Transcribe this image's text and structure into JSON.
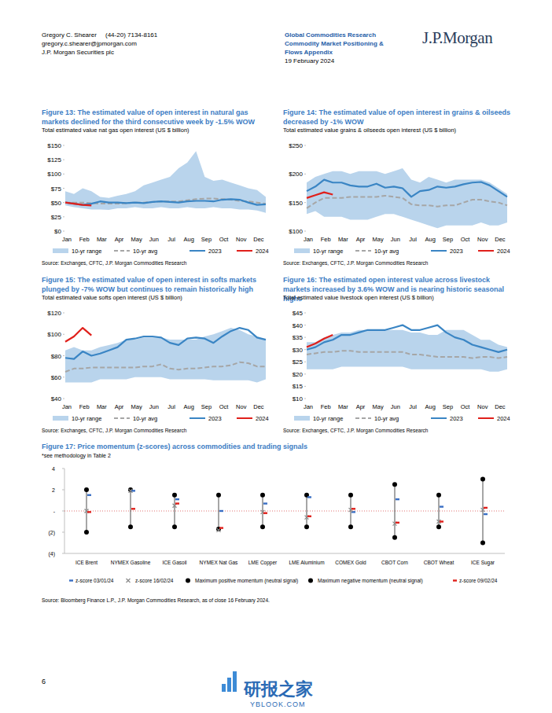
{
  "header": {
    "author": "Gregory C. Shearer",
    "phone": "(44-20) 7134-8161",
    "email": "gregory.c.shearer@jpmorgan.com",
    "entity": "J.P. Morgan Securities plc",
    "department": "Global Commodities Research",
    "publication_lines": [
      "Commodity Market Positioning &",
      "Flows Appendix"
    ],
    "date": "19 February 2024",
    "logo": "J.P.Morgan"
  },
  "chart_data": [
    {
      "type": "line",
      "title": "Figure 13: The estimated value of open interest in natural gas markets declined for the third consecutive week by -1.5% WOW",
      "subtitle": "Total estimated value nat gas open interest (US $ billion)",
      "source": "Source: Exchanges, CFTC, J.P. Morgan Commodities Research",
      "categories": [
        "Jan",
        null,
        "Feb",
        null,
        "Mar",
        null,
        "Apr",
        null,
        "May",
        null,
        "Jun",
        null,
        "Jul",
        null,
        "Aug",
        null,
        "Sep",
        null,
        "Oct",
        null,
        "Nov",
        null,
        "Dec",
        null
      ],
      "series": [
        {
          "name": "10-yr range",
          "type": "range",
          "color": "#b9d4ec",
          "low": [
            45,
            42,
            40,
            38,
            38,
            37,
            40,
            40,
            42,
            40,
            40,
            42,
            40,
            40,
            42,
            40,
            40,
            42,
            40,
            40,
            38,
            38,
            36,
            32
          ],
          "high": [
            70,
            65,
            75,
            70,
            60,
            58,
            62,
            65,
            70,
            80,
            85,
            90,
            95,
            110,
            120,
            140,
            95,
            88,
            90,
            85,
            80,
            75,
            72,
            60
          ]
        },
        {
          "name": "10-yr avg",
          "color": "#a6a6a6",
          "line_style": "dashed",
          "values": [
            50,
            50,
            50,
            49,
            48,
            48,
            48,
            49,
            50,
            50,
            51,
            52,
            52,
            52,
            54,
            56,
            57,
            57,
            56,
            55,
            53,
            52,
            50,
            48
          ]
        },
        {
          "name": "2023",
          "color": "#3a85c4",
          "values": [
            50,
            48,
            46,
            48,
            52,
            50,
            50,
            49,
            50,
            49,
            51,
            52,
            51,
            50,
            52,
            53,
            53,
            52,
            55,
            56,
            55,
            50,
            46,
            47
          ]
        },
        {
          "name": "2024",
          "color": "#e0201b",
          "values": [
            50,
            48,
            46,
            45,
            null,
            null,
            null,
            null,
            null,
            null,
            null,
            null,
            null,
            null,
            null,
            null,
            null,
            null,
            null,
            null,
            null,
            null,
            null,
            null
          ]
        }
      ],
      "ylim": [
        0,
        150
      ],
      "yticks": [
        {
          "value": 0,
          "label": "$0"
        },
        {
          "value": 25,
          "label": "$25"
        },
        {
          "value": 50,
          "label": "$50"
        },
        {
          "value": 75,
          "label": "$75"
        },
        {
          "value": 100,
          "label": "$100"
        },
        {
          "value": 125,
          "label": "$125"
        },
        {
          "value": 150,
          "label": "$150"
        }
      ],
      "grid": false,
      "legend": "bottom"
    },
    {
      "type": "line",
      "title": "Figure 14: The estimated value of open interest in grains & oilseeds decreased by -1% WOW",
      "subtitle": "Total estimated value grains & oilseeds open interest (US $ billion)",
      "source": "Source: Exchanges, CFTC, J.P. Morgan Commodities Research",
      "categories": [
        "Jan",
        null,
        "Feb",
        null,
        "Mar",
        null,
        "Apr",
        null,
        "May",
        null,
        "Jun",
        null,
        "Jul",
        null,
        "Aug",
        null,
        "Sep",
        null,
        "Oct",
        null,
        "Nov",
        null,
        "Dec",
        null
      ],
      "series": [
        {
          "name": "10-yr range",
          "type": "range",
          "color": "#b9d4ec",
          "low": [
            130,
            135,
            125,
            125,
            125,
            120,
            120,
            120,
            125,
            130,
            130,
            125,
            120,
            115,
            110,
            105,
            110,
            110,
            110,
            110,
            115,
            110,
            110,
            115
          ],
          "high": [
            185,
            195,
            200,
            205,
            205,
            200,
            205,
            205,
            205,
            200,
            205,
            210,
            190,
            185,
            195,
            190,
            185,
            190,
            190,
            190,
            190,
            185,
            175,
            165
          ]
        },
        {
          "name": "10-yr avg",
          "color": "#a6a6a6",
          "line_style": "dashed",
          "values": [
            140,
            150,
            158,
            158,
            158,
            160,
            160,
            160,
            160,
            162,
            160,
            158,
            147,
            145,
            145,
            143,
            145,
            145,
            150,
            155,
            155,
            152,
            150,
            145
          ]
        },
        {
          "name": "2023",
          "color": "#3a85c4",
          "values": [
            170,
            178,
            190,
            185,
            185,
            180,
            178,
            178,
            183,
            176,
            178,
            175,
            160,
            170,
            172,
            178,
            176,
            178,
            182,
            185,
            186,
            180,
            170,
            160
          ]
        },
        {
          "name": "2024",
          "color": "#e0201b",
          "values": [
            158,
            163,
            168,
            164,
            null,
            null,
            null,
            null,
            null,
            null,
            null,
            null,
            null,
            null,
            null,
            null,
            null,
            null,
            null,
            null,
            null,
            null,
            null,
            null
          ]
        }
      ],
      "ylim": [
        100,
        250
      ],
      "yticks": [
        {
          "value": 100,
          "label": "$100"
        },
        {
          "value": 150,
          "label": "$150"
        },
        {
          "value": 200,
          "label": "$200"
        },
        {
          "value": 250,
          "label": "$250"
        }
      ],
      "grid": false,
      "legend": "bottom"
    },
    {
      "type": "line",
      "title": "Figure 15: The estimated value of open interest in softs markets plunged by -7% WOW but continues to remain historically high",
      "subtitle": "Total estimated value softs open interest (US $ billion)",
      "source": "Source: Exchanges, CFTC, J.P. Morgan Commodities Research",
      "categories": [
        "Jan",
        null,
        "Feb",
        null,
        "Mar",
        null,
        "Apr",
        null,
        "May",
        null,
        "Jun",
        null,
        "Jul",
        null,
        "Aug",
        null,
        "Sep",
        null,
        "Oct",
        null,
        "Nov",
        null,
        "Dec",
        null
      ],
      "series": [
        {
          "name": "10-yr range",
          "type": "range",
          "color": "#b9d4ec",
          "low": [
            55,
            55,
            55,
            55,
            58,
            58,
            58,
            58,
            60,
            60,
            60,
            60,
            58,
            58,
            58,
            58,
            58,
            57,
            57,
            57,
            57,
            57,
            55,
            58
          ],
          "high": [
            85,
            88,
            85,
            85,
            88,
            90,
            92,
            95,
            95,
            97,
            97,
            97,
            95,
            95,
            95,
            95,
            98,
            100,
            103,
            106,
            104,
            100,
            98,
            95
          ]
        },
        {
          "name": "10-yr avg",
          "color": "#a6a6a6",
          "line_style": "dashed",
          "values": [
            65,
            68,
            68,
            69,
            69,
            69,
            69,
            69,
            69,
            70,
            70,
            72,
            68,
            67,
            68,
            68,
            69,
            70,
            70,
            71,
            74,
            73,
            70,
            70
          ]
        },
        {
          "name": "2023",
          "color": "#3a85c4",
          "values": [
            78,
            77,
            84,
            80,
            82,
            85,
            88,
            95,
            96,
            98,
            98,
            97,
            92,
            90,
            96,
            97,
            96,
            92,
            98,
            103,
            106,
            104,
            97,
            95
          ]
        },
        {
          "name": "2024",
          "color": "#e0201b",
          "values": [
            93,
            98,
            106,
            99,
            null,
            null,
            null,
            null,
            null,
            null,
            null,
            null,
            null,
            null,
            null,
            null,
            null,
            null,
            null,
            null,
            null,
            null,
            null,
            null
          ]
        }
      ],
      "ylim": [
        40,
        120
      ],
      "yticks": [
        {
          "value": 40,
          "label": "$40"
        },
        {
          "value": 60,
          "label": "$60"
        },
        {
          "value": 80,
          "label": "$80"
        },
        {
          "value": 100,
          "label": "$100"
        },
        {
          "value": 120,
          "label": "$120"
        }
      ],
      "grid": false,
      "legend": "bottom"
    },
    {
      "type": "line",
      "title": "Figure 16: The estimated open interest value across livestock markets increased by 3.6% WOW and is nearing historic seasonal highs",
      "subtitle": "Total estimated value livestock open interest (US $ billion)",
      "source": "Source: Exchanges, CFTC, J.P. Morgan Commodities Research",
      "categories": [
        "Jan",
        null,
        "Feb",
        null,
        "Mar",
        null,
        "Apr",
        null,
        "May",
        null,
        "Jun",
        null,
        "Jul",
        null,
        "Aug",
        null,
        "Sep",
        null,
        "Oct",
        null,
        "Nov",
        null,
        "Dec",
        null
      ],
      "series": [
        {
          "name": "10-yr range",
          "type": "range",
          "color": "#b9d4ec",
          "low": [
            22,
            22,
            22,
            22,
            23,
            23,
            23,
            23,
            23,
            23,
            23,
            23,
            22,
            22,
            22,
            22,
            22,
            22,
            22,
            22,
            22,
            21,
            21,
            22
          ],
          "high": [
            33,
            33,
            35,
            36,
            37,
            37,
            38,
            38,
            38,
            38,
            38,
            38,
            37,
            37,
            36,
            36,
            38,
            38,
            38,
            36,
            34,
            34,
            32,
            31
          ]
        },
        {
          "name": "10-yr avg",
          "color": "#a6a6a6",
          "line_style": "dashed",
          "values": [
            28,
            28.5,
            29,
            29,
            29.5,
            29.5,
            29,
            29,
            29,
            29,
            29,
            29,
            28,
            28,
            27.5,
            27,
            27,
            27,
            27,
            26.5,
            27,
            27,
            26.5,
            27
          ]
        },
        {
          "name": "2023",
          "color": "#3a85c4",
          "values": [
            30,
            31,
            33,
            34,
            36,
            36,
            37,
            38,
            38,
            38,
            39,
            40,
            38,
            38,
            39,
            40,
            37,
            35,
            34,
            32,
            31,
            30,
            29,
            30
          ]
        },
        {
          "name": "2024",
          "color": "#e0201b",
          "values": [
            31,
            32.5,
            34.5,
            36,
            null,
            null,
            null,
            null,
            null,
            null,
            null,
            null,
            null,
            null,
            null,
            null,
            null,
            null,
            null,
            null,
            null,
            null,
            null,
            null
          ]
        }
      ],
      "ylim": [
        10,
        45
      ],
      "yticks": [
        {
          "value": 10,
          "label": "$10"
        },
        {
          "value": 15,
          "label": "$15"
        },
        {
          "value": 20,
          "label": "$20"
        },
        {
          "value": 25,
          "label": "$25"
        },
        {
          "value": 30,
          "label": "$30"
        },
        {
          "value": 35,
          "label": "$35"
        },
        {
          "value": 40,
          "label": "$40"
        },
        {
          "value": 45,
          "label": "$45"
        }
      ],
      "grid": false,
      "legend": "bottom"
    },
    {
      "type": "scatter",
      "title": "Figure 17: Price momentum (z-scores) across commodities and trading signals",
      "subtitle": "*see methodology in Table 2",
      "source": "Source: Bloomberg Finance L.P., J.P. Morgan Commodities Research, as of close 16 February 2024.",
      "categories": [
        "ICE Brent",
        "NYMEX Gasoline",
        "ICE Gasoil",
        "NYMEX Nat Gas",
        "LME Copper",
        "LME Aluminium",
        "COMEX Gold",
        "CBOT Corn",
        "CBOT Wheat",
        "ICE Sugar"
      ],
      "series": [
        {
          "name": "z-score 03/01/24",
          "color": "#3a6fc4",
          "marker": "dash",
          "values": [
            1.5,
            1.9,
            1.1,
            0.0,
            0.7,
            1.3,
            -0.1,
            1.1,
            0.4,
            -0.3
          ]
        },
        {
          "name": "z-score 16/02/24",
          "color": "#8c8c8c",
          "marker": "x",
          "values": [
            0.0,
            1.9,
            0.5,
            -1.8,
            -0.1,
            -0.6,
            0.1,
            -1.2,
            -1.0,
            0.1
          ]
        },
        {
          "name": "Maximum positive momentum (neutral signal)",
          "color": "#000000",
          "marker": "circle",
          "values": [
            2,
            2,
            1.5,
            1.5,
            1.5,
            1.5,
            1.5,
            2.5,
            1.5,
            3
          ]
        },
        {
          "name": "Maximum negative momentum (neutral signal)",
          "color": "#000000",
          "marker": "circle",
          "values": [
            -2,
            -1.5,
            -1.5,
            -1.7,
            -1.5,
            -1.5,
            -1.5,
            -2.5,
            -1.5,
            -3
          ]
        },
        {
          "name": "z-score 09/02/24",
          "color": "#e0201b",
          "marker": "dash",
          "values": [
            -0.1,
            0.2,
            0.7,
            -1.6,
            -0.2,
            -0.5,
            0.2,
            -1.1,
            -1.0,
            0.3
          ]
        }
      ],
      "ylim": [
        -4,
        4
      ],
      "yticks": [
        {
          "value": -4,
          "label": "(4)"
        },
        {
          "value": -2,
          "label": "(2)"
        },
        {
          "value": 0,
          "label": "-"
        },
        2,
        4
      ],
      "grid": false,
      "legend": "bottom"
    }
  ],
  "page_number": "6",
  "watermark": {
    "name": "研报之家",
    "url": "YBLOOK.COM"
  }
}
